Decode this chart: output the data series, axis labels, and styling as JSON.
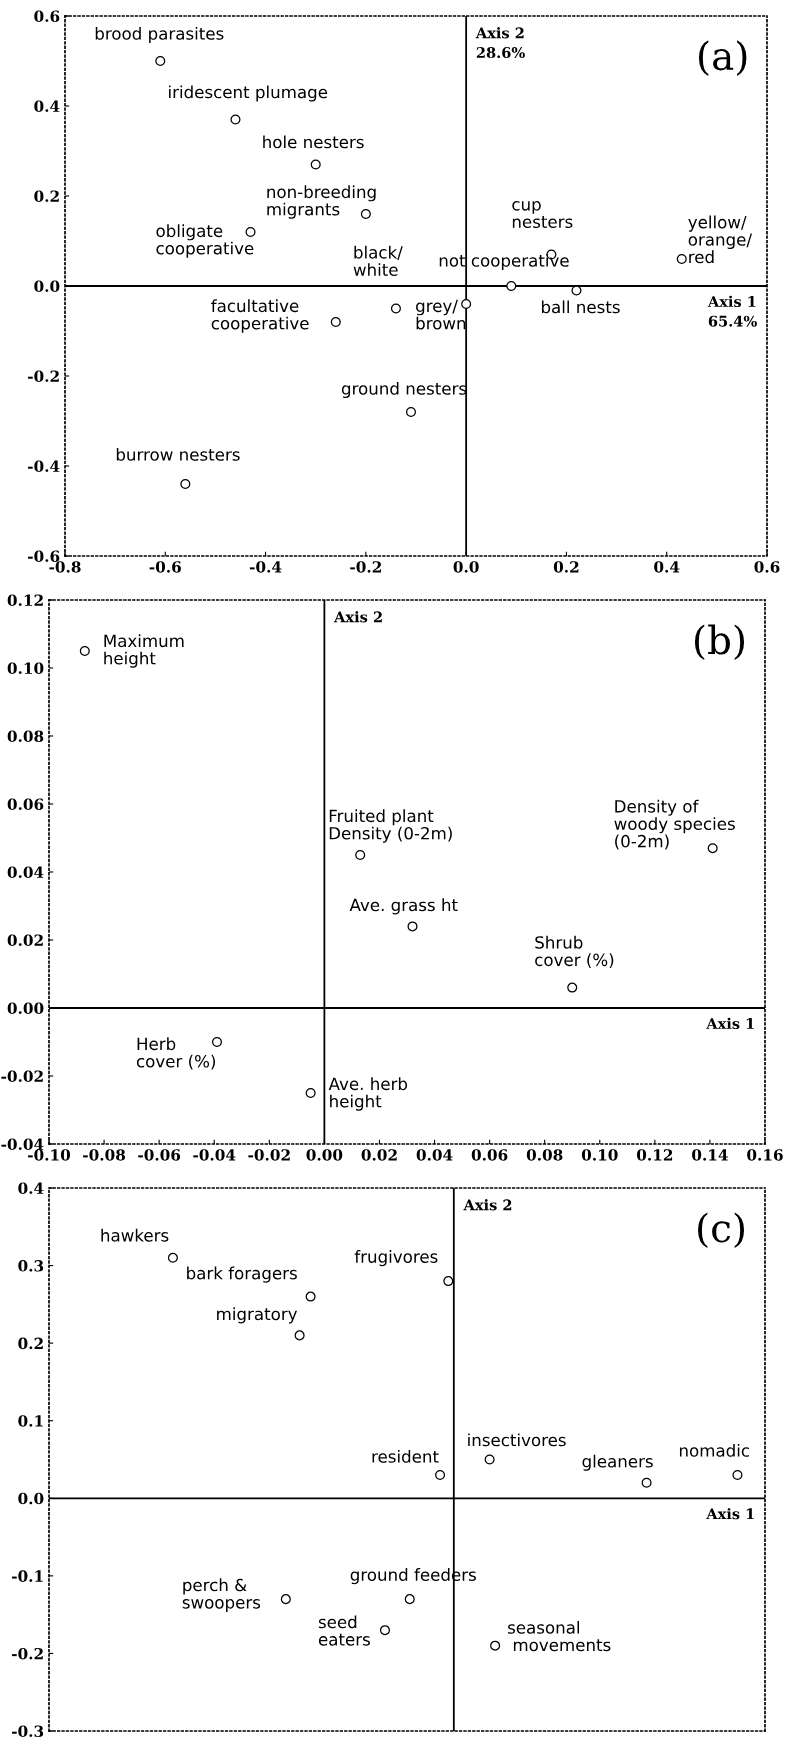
{
  "chart_data": [
    {
      "type": "scatter",
      "xlim": [
        -0.8,
        0.6
      ],
      "ylim": [
        -0.6,
        0.6
      ],
      "xticks": [
        -0.8,
        -0.6,
        -0.4,
        -0.2,
        {
          "value": 0,
          "label": "0.0"
        },
        0.2,
        0.4,
        0.6
      ],
      "yticks": [
        -0.6,
        -0.4,
        -0.2,
        {
          "value": 0,
          "label": "0.0"
        },
        0.2,
        0.4,
        0.6
      ],
      "grid": false,
      "marker": "circle",
      "series": [
        {
          "color": "#000000",
          "x": [
            -0.61,
            -0.46,
            -0.3,
            -0.2,
            -0.43,
            -0.14,
            -0.26,
            0.0,
            0.09,
            0.17,
            0.22,
            0.43,
            -0.11,
            -0.56
          ],
          "values": [
            0.5,
            0.37,
            0.27,
            0.16,
            0.12,
            -0.05,
            -0.08,
            -0.04,
            0.0,
            0.07,
            -0.01,
            0.06,
            -0.28,
            -0.44
          ]
        }
      ],
      "ref_lines": [
        {
          "axis": "x",
          "value": 0,
          "label": "Axis 2\n28.6%",
          "color": "#000000"
        },
        {
          "axis": "y",
          "value": 0,
          "label": "Axis 1\n65.4%",
          "color": "#000000"
        }
      ],
      "annotations": [
        "(a)",
        {
          "text": "brood parasites",
          "x": -0.61,
          "y": 0.5
        },
        {
          "text": "iridescent plumage",
          "x": -0.46,
          "y": 0.37
        },
        {
          "text": "hole nesters",
          "x": -0.3,
          "y": 0.27
        },
        {
          "text": "non-breeding\nmigrants",
          "x": -0.2,
          "y": 0.16
        },
        {
          "text": "obligate\ncooperative",
          "x": -0.43,
          "y": 0.12
        },
        {
          "text": "black/\nwhite",
          "x": -0.14,
          "y": -0.05
        },
        {
          "text": "facultative\ncooperative",
          "x": -0.26,
          "y": -0.08
        },
        {
          "text": "grey/\nbrown",
          "x": 0.0,
          "y": -0.04
        },
        {
          "text": "not cooperative",
          "x": 0.09,
          "y": 0.0
        },
        {
          "text": "cup\nnesters",
          "x": 0.17,
          "y": 0.07
        },
        {
          "text": "ball nests",
          "x": 0.22,
          "y": -0.01
        },
        {
          "text": "yellow/\norange/\nred",
          "x": 0.43,
          "y": 0.06
        },
        {
          "text": "ground nesters",
          "x": -0.11,
          "y": -0.28
        },
        {
          "text": "burrow nesters",
          "x": -0.56,
          "y": -0.44
        }
      ]
    },
    {
      "type": "scatter",
      "xlim": [
        -0.1,
        0.16
      ],
      "ylim": [
        -0.04,
        0.12
      ],
      "xticks": [
        {
          "value": -0.1,
          "label": "-0.10"
        },
        {
          "value": -0.08,
          "label": "-0.08"
        },
        {
          "value": -0.06,
          "label": "-0.06"
        },
        {
          "value": -0.04,
          "label": "-0.04"
        },
        {
          "value": -0.02,
          "label": "-0.02"
        },
        {
          "value": 0.0,
          "label": "0.00"
        },
        {
          "value": 0.02,
          "label": "0.02"
        },
        {
          "value": 0.04,
          "label": "0.04"
        },
        {
          "value": 0.06,
          "label": "0.06"
        },
        {
          "value": 0.08,
          "label": "0.08"
        },
        {
          "value": 0.1,
          "label": "0.10"
        },
        {
          "value": 0.12,
          "label": "0.12"
        },
        {
          "value": 0.14,
          "label": "0.14"
        },
        {
          "value": 0.16,
          "label": "0.16"
        }
      ],
      "yticks": [
        {
          "value": -0.04,
          "label": "-0.04"
        },
        {
          "value": -0.02,
          "label": "-0.02"
        },
        {
          "value": 0.0,
          "label": "0.00"
        },
        {
          "value": 0.02,
          "label": "0.02"
        },
        {
          "value": 0.04,
          "label": "0.04"
        },
        {
          "value": 0.06,
          "label": "0.06"
        },
        {
          "value": 0.08,
          "label": "0.08"
        },
        {
          "value": 0.1,
          "label": "0.10"
        },
        {
          "value": 0.12,
          "label": "0.12"
        }
      ],
      "grid": false,
      "marker": "circle",
      "series": [
        {
          "color": "#000000",
          "x": [
            -0.087,
            0.013,
            0.141,
            0.032,
            0.09,
            -0.039,
            -0.005
          ],
          "values": [
            0.105,
            0.045,
            0.047,
            0.024,
            0.006,
            -0.01,
            -0.025
          ]
        }
      ],
      "ref_lines": [
        {
          "axis": "x",
          "value": 0,
          "label": "Axis 2",
          "color": "#000000"
        },
        {
          "axis": "y",
          "value": 0,
          "label": "Axis 1",
          "color": "#000000"
        }
      ],
      "annotations": [
        "(b)",
        {
          "text": "Maximum\nheight",
          "x": -0.087,
          "y": 0.105
        },
        {
          "text": "Fruited plant\nDensity (0-2m)",
          "x": 0.013,
          "y": 0.045
        },
        {
          "text": "Density of\nwoody species\n(0-2m)",
          "x": 0.141,
          "y": 0.047
        },
        {
          "text": "Ave. grass ht",
          "x": 0.032,
          "y": 0.024
        },
        {
          "text": "Shrub\ncover (%)",
          "x": 0.09,
          "y": 0.006
        },
        {
          "text": "Herb\ncover (%)",
          "x": -0.039,
          "y": -0.01
        },
        {
          "text": "Ave. herb\nheight",
          "x": -0.005,
          "y": -0.025
        }
      ]
    },
    {
      "type": "scatter",
      "xlim": [
        -0.1,
        0.16
      ],
      "ylim": [
        -0.3,
        0.4
      ],
      "yticks": [
        -0.3,
        -0.2,
        -0.1,
        {
          "value": 0,
          "label": "0.0"
        },
        0.1,
        0.2,
        0.3,
        0.4
      ],
      "tick_labels": "y",
      "grid": false,
      "marker": "circle",
      "series": [
        {
          "color": "#000000",
          "x": [
            -0.055,
            -0.005,
            -0.009,
            0.045,
            0.042,
            0.06,
            0.117,
            0.15,
            -0.014,
            0.031,
            0.022,
            0.062
          ],
          "values": [
            0.31,
            0.26,
            0.21,
            0.28,
            0.03,
            0.05,
            0.02,
            0.03,
            -0.13,
            -0.13,
            -0.17,
            -0.19
          ]
        }
      ],
      "ref_lines": [
        {
          "axis": "x",
          "value": 0.047,
          "label": "Axis 2",
          "color": "#000000"
        },
        {
          "axis": "y",
          "value": 0,
          "label": "Axis 1",
          "color": "#000000"
        }
      ],
      "annotations": [
        "(c)",
        {
          "text": "hawkers",
          "x": -0.055,
          "y": 0.31
        },
        {
          "text": "bark foragers",
          "x": -0.005,
          "y": 0.26
        },
        {
          "text": "migratory",
          "x": -0.009,
          "y": 0.21
        },
        {
          "text": "frugivores",
          "x": 0.045,
          "y": 0.28
        },
        {
          "text": "resident",
          "x": 0.042,
          "y": 0.03
        },
        {
          "text": "insectivores",
          "x": 0.06,
          "y": 0.05
        },
        {
          "text": "gleaners",
          "x": 0.117,
          "y": 0.02
        },
        {
          "text": "nomadic",
          "x": 0.15,
          "y": 0.03
        },
        {
          "text": "perch &\nswoopers",
          "x": -0.014,
          "y": -0.13
        },
        {
          "text": "ground feeders",
          "x": 0.031,
          "y": -0.13
        },
        {
          "text": "seed\neaters",
          "x": 0.022,
          "y": -0.17
        },
        {
          "text": "seasonal\n movements",
          "x": 0.062,
          "y": -0.19
        }
      ]
    }
  ]
}
